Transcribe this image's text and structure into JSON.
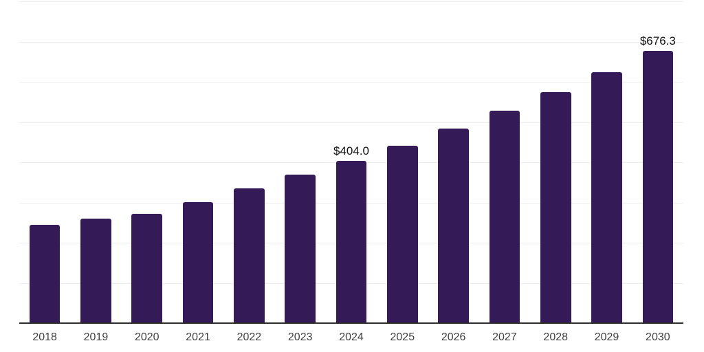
{
  "chart_data": {
    "type": "bar",
    "title": "",
    "xlabel": "",
    "ylabel": "",
    "categories": [
      "2018",
      "2019",
      "2020",
      "2021",
      "2022",
      "2023",
      "2024",
      "2025",
      "2026",
      "2027",
      "2028",
      "2029",
      "2030"
    ],
    "values": [
      244.0,
      260.0,
      272.5,
      301.0,
      335.0,
      369.5,
      404.0,
      441.0,
      484.0,
      528.5,
      575.0,
      624.0,
      676.3
    ],
    "value_labels": [
      "",
      "",
      "",
      "",
      "",
      "",
      "$404.0",
      "",
      "",
      "",
      "",
      "",
      "$676.3"
    ],
    "ylim": [
      0,
      800
    ],
    "gridline_step": 100,
    "grid": "horizontal",
    "y_tick_labels_visible": false,
    "legend": "none",
    "colors": {
      "bar": "#351A58",
      "gridline": "#EDEDED",
      "axis_line": "#2E2E2E",
      "tick_label": "#3F3F3F",
      "value_label": "#121212",
      "background": "#FFFFFF"
    }
  }
}
